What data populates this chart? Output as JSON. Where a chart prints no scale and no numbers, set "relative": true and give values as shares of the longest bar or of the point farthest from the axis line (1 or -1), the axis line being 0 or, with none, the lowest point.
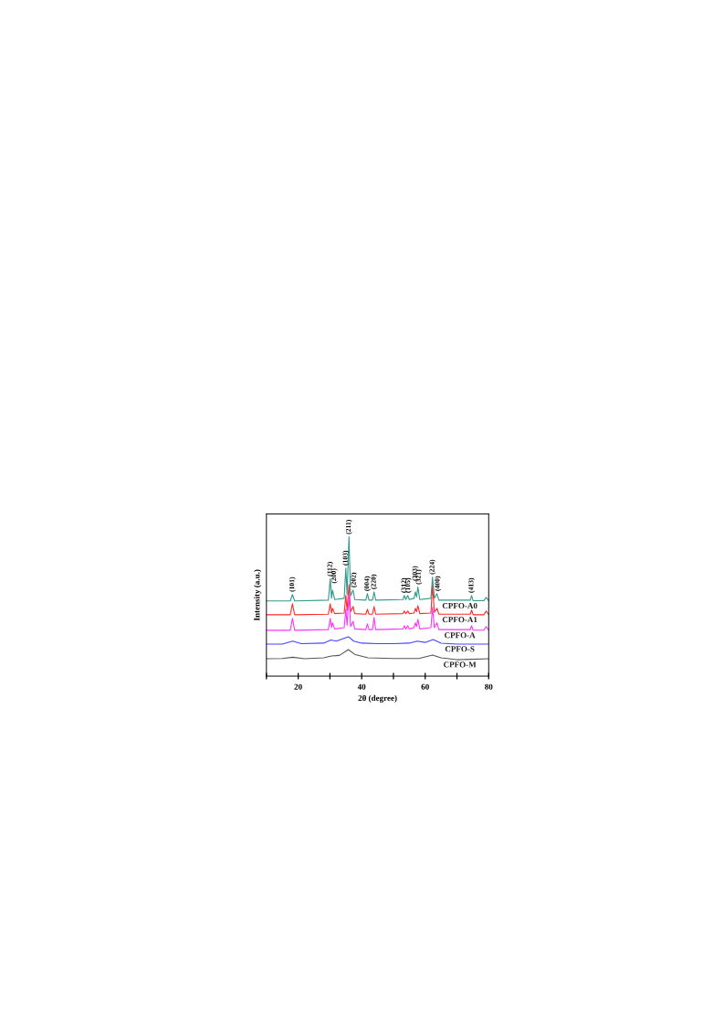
{
  "chart_data": {
    "type": "line",
    "relative": true,
    "xlabel": "2θ (degree)",
    "ylabel": "Intensity (a.u.)",
    "xlim": [
      10,
      80
    ],
    "xticks": [
      {
        "value": 10,
        "label": null
      },
      20,
      {
        "value": 30,
        "label": null
      },
      40,
      {
        "value": 50,
        "label": null
      },
      60,
      {
        "value": 70,
        "label": null
      },
      80
    ],
    "tick_labels": "x",
    "grid": false,
    "legend": false,
    "marker": "none",
    "line_style": "solid",
    "series": [
      {
        "name": "CPFO-A0",
        "color": "#2e9a8c",
        "x": [
          10,
          17.5,
          18.2,
          18.9,
          29.5,
          30.1,
          30.5,
          30.8,
          31.5,
          34.5,
          35.0,
          35.4,
          36.0,
          36.5,
          37.3,
          37.8,
          41.3,
          41.8,
          42.3,
          43.4,
          43.9,
          44.4,
          53.0,
          53.4,
          53.9,
          54.5,
          55.0,
          56.5,
          56.9,
          57.3,
          57.7,
          58.3,
          61.8,
          62.3,
          62.9,
          63.7,
          64.3,
          74.2,
          74.6,
          75.1,
          78.5,
          79.2,
          80
        ],
        "values": [
          0.54,
          0.54,
          0.586,
          0.54,
          0.546,
          0.698,
          0.559,
          0.618,
          0.55,
          0.559,
          0.776,
          0.586,
          1.0,
          0.577,
          0.618,
          0.55,
          0.546,
          0.592,
          0.546,
          0.546,
          0.605,
          0.546,
          0.55,
          0.579,
          0.55,
          0.579,
          0.55,
          0.559,
          0.605,
          0.568,
          0.639,
          0.55,
          0.559,
          0.711,
          0.559,
          0.592,
          0.546,
          0.546,
          0.579,
          0.542,
          0.542,
          0.565,
          0.54
        ]
      },
      {
        "name": "CPFO-A1",
        "color": "#ff2a2a",
        "x": [
          10,
          17.5,
          18.2,
          18.9,
          29.5,
          30.1,
          30.5,
          30.8,
          31.5,
          34.5,
          35.0,
          35.4,
          36.0,
          36.5,
          37.3,
          37.8,
          41.3,
          41.8,
          42.3,
          43.4,
          43.9,
          44.4,
          53.0,
          53.4,
          53.9,
          54.5,
          55.0,
          56.5,
          56.9,
          57.3,
          57.7,
          58.3,
          61.8,
          62.3,
          62.9,
          63.7,
          64.3,
          74.2,
          74.6,
          75.1,
          78.5,
          79.2,
          80
        ],
        "values": [
          0.441,
          0.441,
          0.52,
          0.441,
          0.445,
          0.52,
          0.453,
          0.487,
          0.449,
          0.453,
          0.579,
          0.471,
          0.658,
          0.462,
          0.5,
          0.449,
          0.445,
          0.48,
          0.445,
          0.445,
          0.5,
          0.445,
          0.449,
          0.467,
          0.449,
          0.467,
          0.449,
          0.453,
          0.487,
          0.462,
          0.506,
          0.449,
          0.453,
          0.651,
          0.458,
          0.487,
          0.445,
          0.445,
          0.474,
          0.441,
          0.441,
          0.467,
          0.441
        ]
      },
      {
        "name": "CPFO-A",
        "color": "#ff33ff",
        "x": [
          10,
          17.5,
          18.2,
          18.9,
          29.5,
          30.1,
          30.5,
          30.8,
          31.5,
          34.5,
          35.0,
          35.4,
          36.0,
          36.5,
          37.3,
          37.8,
          41.3,
          41.8,
          42.3,
          43.4,
          43.9,
          44.4,
          53.0,
          53.4,
          53.9,
          54.5,
          55.0,
          56.5,
          56.9,
          57.3,
          57.7,
          58.3,
          61.8,
          62.3,
          62.9,
          63.7,
          64.3,
          74.2,
          74.6,
          75.1,
          78.5,
          79.2,
          80
        ],
        "values": [
          0.329,
          0.329,
          0.415,
          0.329,
          0.334,
          0.415,
          0.348,
          0.383,
          0.339,
          0.348,
          0.48,
          0.365,
          0.592,
          0.356,
          0.394,
          0.339,
          0.334,
          0.375,
          0.334,
          0.334,
          0.421,
          0.334,
          0.339,
          0.362,
          0.339,
          0.362,
          0.339,
          0.348,
          0.383,
          0.356,
          0.408,
          0.339,
          0.348,
          0.493,
          0.348,
          0.383,
          0.334,
          0.334,
          0.362,
          0.33,
          0.33,
          0.356,
          0.329
        ]
      },
      {
        "name": "CPFO-S",
        "color": "#4444ff",
        "x": [
          10,
          15,
          18.3,
          21,
          28,
          30.3,
          32,
          34,
          35.8,
          37.5,
          40,
          45,
          50,
          55,
          57.5,
          60,
          62.5,
          65,
          70,
          80
        ],
        "values": [
          0.23,
          0.23,
          0.251,
          0.233,
          0.237,
          0.259,
          0.251,
          0.268,
          0.283,
          0.251,
          0.237,
          0.233,
          0.233,
          0.237,
          0.251,
          0.242,
          0.263,
          0.237,
          0.23,
          0.23
        ]
      },
      {
        "name": "CPFO-M",
        "color": "#555555",
        "x": [
          10,
          15,
          18.3,
          22,
          28,
          30.5,
          33,
          35.8,
          38,
          42,
          50,
          58,
          62.3,
          65,
          70,
          80
        ],
        "values": [
          0.125,
          0.127,
          0.136,
          0.125,
          0.132,
          0.145,
          0.149,
          0.191,
          0.154,
          0.132,
          0.127,
          0.127,
          0.151,
          0.132,
          0.118,
          0.125
        ]
      }
    ],
    "annotations": [
      {
        "text": "(101)",
        "x": 18.2,
        "y": 0.586
      },
      {
        "text": "(112)",
        "x": 30.1,
        "y": 0.698
      },
      {
        "text": "(200)",
        "x": 31.4,
        "y": 0.647
      },
      {
        "text": "(103)",
        "x": 35.0,
        "y": 0.776
      },
      {
        "text": "(211)",
        "x": 36.0,
        "y": 1.0
      },
      {
        "text": "(202)",
        "x": 37.6,
        "y": 0.618
      },
      {
        "text": "(004)",
        "x": 41.8,
        "y": 0.592
      },
      {
        "text": "(220)",
        "x": 43.9,
        "y": 0.605
      },
      {
        "text": "(312)",
        "x": 53.4,
        "y": 0.579
      },
      {
        "text": "(105)",
        "x": 54.7,
        "y": 0.579
      },
      {
        "text": "(303)",
        "x": 56.9,
        "y": 0.665
      },
      {
        "text": "(321)",
        "x": 58.0,
        "y": 0.639
      },
      {
        "text": "(224)",
        "x": 62.3,
        "y": 0.711
      },
      {
        "text": "(400)",
        "x": 64.0,
        "y": 0.592
      },
      {
        "text": "(413)",
        "x": 74.6,
        "y": 0.579
      }
    ]
  }
}
